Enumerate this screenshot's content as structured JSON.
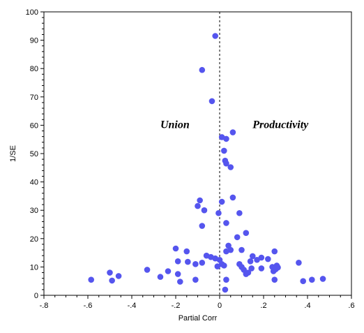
{
  "chart_data": {
    "type": "scatter",
    "title": "",
    "xlabel": "Partial Corr",
    "ylabel": "1/SE",
    "xlim": [
      -0.8,
      0.6
    ],
    "ylim": [
      0,
      100
    ],
    "x_ticks": [
      -0.8,
      -0.6,
      -0.4,
      -0.2,
      0,
      0.2,
      0.4,
      0.6
    ],
    "x_tick_labels": [
      "-.8",
      "-.6",
      "-.4",
      "-.2",
      "0",
      ".2",
      ".4",
      ".6"
    ],
    "y_ticks": [
      0,
      10,
      20,
      30,
      40,
      50,
      60,
      70,
      80,
      90,
      100
    ],
    "y_tick_labels": [
      "0",
      "10",
      "20",
      "30",
      "40",
      "50",
      "60",
      "70",
      "80",
      "90",
      "100"
    ],
    "reference_line": {
      "x": 0,
      "style": "dashed"
    },
    "annotations": [
      {
        "text": "Union",
        "x": -0.27,
        "y": 61
      },
      {
        "text": "Productivity",
        "x": 0.15,
        "y": 61
      }
    ],
    "point_color": "#5555ee",
    "points": [
      [
        -0.02,
        91.5
      ],
      [
        -0.08,
        79.5
      ],
      [
        -0.035,
        68.5
      ],
      [
        0.06,
        57.5
      ],
      [
        0.01,
        55.8
      ],
      [
        0.03,
        55.2
      ],
      [
        0.02,
        51
      ],
      [
        0.025,
        47.5
      ],
      [
        0.03,
        46.5
      ],
      [
        0.05,
        45.2
      ],
      [
        0.06,
        34.5
      ],
      [
        -0.09,
        33.5
      ],
      [
        0.01,
        33
      ],
      [
        -0.1,
        31.5
      ],
      [
        -0.07,
        30
      ],
      [
        -0.005,
        29
      ],
      [
        0.09,
        29
      ],
      [
        0.03,
        25.5
      ],
      [
        -0.08,
        24.5
      ],
      [
        0.12,
        22
      ],
      [
        0.08,
        20.5
      ],
      [
        -0.2,
        16.5
      ],
      [
        -0.15,
        15.5
      ],
      [
        0.04,
        17.5
      ],
      [
        0.1,
        16
      ],
      [
        0.25,
        15.5
      ],
      [
        0.05,
        16
      ],
      [
        0.03,
        15.5
      ],
      [
        -0.06,
        14
      ],
      [
        -0.04,
        13.5
      ],
      [
        -0.02,
        13
      ],
      [
        0.0,
        12.5
      ],
      [
        0.15,
        13.8
      ],
      [
        0.19,
        13.3
      ],
      [
        0.22,
        12.8
      ],
      [
        -0.19,
        12
      ],
      [
        -0.145,
        11.8
      ],
      [
        -0.11,
        11
      ],
      [
        -0.08,
        11.5
      ],
      [
        0.01,
        11
      ],
      [
        0.09,
        11
      ],
      [
        0.14,
        12
      ],
      [
        0.17,
        12.5
      ],
      [
        0.36,
        11.5
      ],
      [
        -0.01,
        10.2
      ],
      [
        0.02,
        10.5
      ],
      [
        0.1,
        10
      ],
      [
        0.19,
        9.5
      ],
      [
        0.24,
        10
      ],
      [
        0.26,
        10.5
      ],
      [
        -0.33,
        9
      ],
      [
        -0.235,
        8.5
      ],
      [
        0.11,
        9
      ],
      [
        0.13,
        8
      ],
      [
        0.145,
        9.5
      ],
      [
        0.245,
        8.5
      ],
      [
        0.255,
        9.2
      ],
      [
        0.265,
        9.8
      ],
      [
        -0.5,
        8
      ],
      [
        -0.46,
        6.8
      ],
      [
        -0.27,
        6.5
      ],
      [
        -0.19,
        7.5
      ],
      [
        0.12,
        7.5
      ],
      [
        -0.585,
        5.5
      ],
      [
        -0.49,
        5.2
      ],
      [
        -0.18,
        4.8
      ],
      [
        -0.11,
        5.5
      ],
      [
        0.03,
        5.5
      ],
      [
        0.25,
        5.5
      ],
      [
        0.38,
        5
      ],
      [
        0.42,
        5.5
      ],
      [
        0.47,
        5.8
      ],
      [
        0.025,
        2
      ]
    ]
  }
}
